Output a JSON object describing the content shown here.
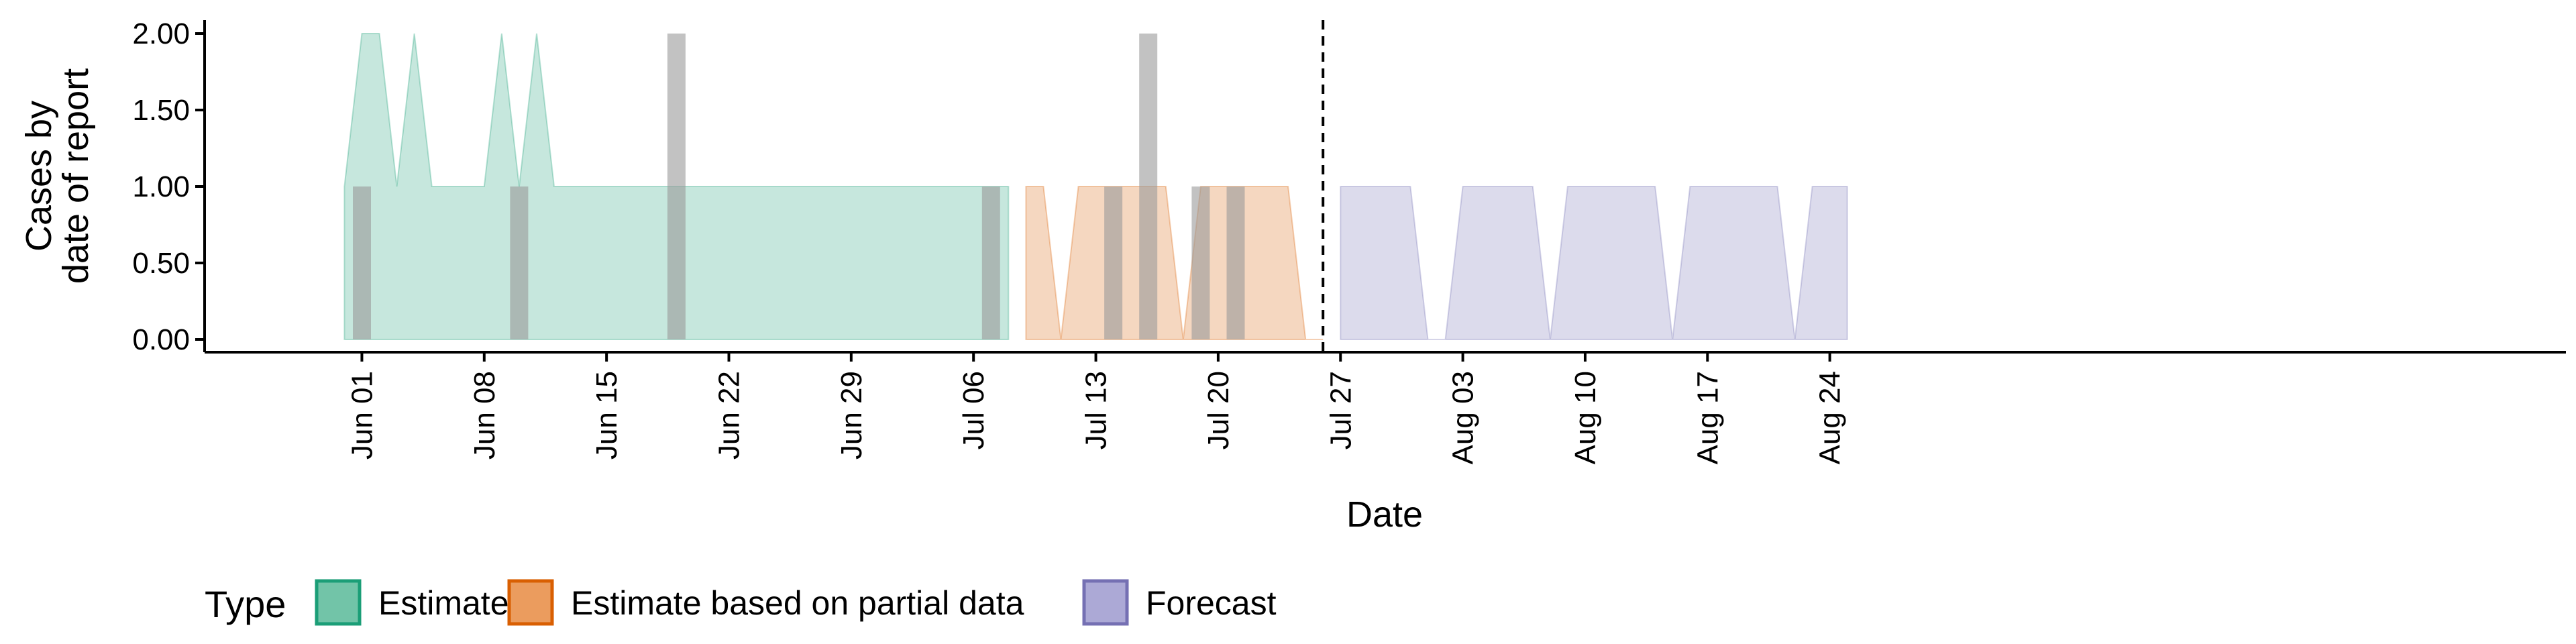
{
  "chart_data": {
    "type": "area",
    "xlabel": "Date",
    "ylabel_lines": [
      "Cases by",
      "date of report"
    ],
    "ylim": [
      0,
      2
    ],
    "xlim": [
      "2020-05-23",
      "2020-08-30"
    ],
    "y_ticks": [
      "0.00",
      "0.50",
      "1.00",
      "1.50",
      "2.00"
    ],
    "x_ticks": [
      {
        "date": "2020-06-01",
        "label": "Jun 01"
      },
      {
        "date": "2020-06-08",
        "label": "Jun 08"
      },
      {
        "date": "2020-06-15",
        "label": "Jun 15"
      },
      {
        "date": "2020-06-22",
        "label": "Jun 22"
      },
      {
        "date": "2020-06-29",
        "label": "Jun 29"
      },
      {
        "date": "2020-07-06",
        "label": "Jul 06"
      },
      {
        "date": "2020-07-13",
        "label": "Jul 13"
      },
      {
        "date": "2020-07-20",
        "label": "Jul 20"
      },
      {
        "date": "2020-07-27",
        "label": "Jul 27"
      },
      {
        "date": "2020-08-03",
        "label": "Aug 03"
      },
      {
        "date": "2020-08-10",
        "label": "Aug 10"
      },
      {
        "date": "2020-08-17",
        "label": "Aug 17"
      },
      {
        "date": "2020-08-24",
        "label": "Aug 24"
      }
    ],
    "forecast_date": "2020-07-26",
    "series": [
      {
        "name": "Estimate",
        "color": "#1b9e77",
        "points": [
          {
            "date": "2020-05-31",
            "lower": 0,
            "upper": 1
          },
          {
            "date": "2020-06-01",
            "lower": 0,
            "upper": 2
          },
          {
            "date": "2020-06-02",
            "lower": 0,
            "upper": 2
          },
          {
            "date": "2020-06-03",
            "lower": 0,
            "upper": 1
          },
          {
            "date": "2020-06-04",
            "lower": 0,
            "upper": 2
          },
          {
            "date": "2020-06-05",
            "lower": 0,
            "upper": 1
          },
          {
            "date": "2020-06-06",
            "lower": 0,
            "upper": 1
          },
          {
            "date": "2020-06-07",
            "lower": 0,
            "upper": 1
          },
          {
            "date": "2020-06-08",
            "lower": 0,
            "upper": 1
          },
          {
            "date": "2020-06-09",
            "lower": 0,
            "upper": 2
          },
          {
            "date": "2020-06-10",
            "lower": 0,
            "upper": 1
          },
          {
            "date": "2020-06-11",
            "lower": 0,
            "upper": 2
          },
          {
            "date": "2020-06-12",
            "lower": 0,
            "upper": 1
          },
          {
            "date": "2020-06-20",
            "lower": 0,
            "upper": 1
          },
          {
            "date": "2020-06-30",
            "lower": 0,
            "upper": 1
          },
          {
            "date": "2020-07-08",
            "lower": 0,
            "upper": 1
          }
        ]
      },
      {
        "name": "Estimate based on partial data",
        "color": "#d95f02",
        "points": [
          {
            "date": "2020-07-09",
            "lower": 0,
            "upper": 1
          },
          {
            "date": "2020-07-10",
            "lower": 0,
            "upper": 1
          },
          {
            "date": "2020-07-11",
            "lower": 0,
            "upper": 0
          },
          {
            "date": "2020-07-12",
            "lower": 0,
            "upper": 1
          },
          {
            "date": "2020-07-17",
            "lower": 0,
            "upper": 1
          },
          {
            "date": "2020-07-18",
            "lower": 0,
            "upper": 0
          },
          {
            "date": "2020-07-19",
            "lower": 0,
            "upper": 1
          },
          {
            "date": "2020-07-24",
            "lower": 0,
            "upper": 1
          },
          {
            "date": "2020-07-25",
            "lower": 0,
            "upper": 0
          },
          {
            "date": "2020-07-26",
            "lower": 0,
            "upper": 0
          }
        ]
      },
      {
        "name": "Forecast",
        "color": "#7570b3",
        "points": [
          {
            "date": "2020-07-27",
            "lower": 0,
            "upper": 1
          },
          {
            "date": "2020-07-31",
            "lower": 0,
            "upper": 1
          },
          {
            "date": "2020-08-01",
            "lower": 0,
            "upper": 0
          },
          {
            "date": "2020-08-02",
            "lower": 0,
            "upper": 0
          },
          {
            "date": "2020-08-03",
            "lower": 0,
            "upper": 1
          },
          {
            "date": "2020-08-07",
            "lower": 0,
            "upper": 1
          },
          {
            "date": "2020-08-08",
            "lower": 0,
            "upper": 0
          },
          {
            "date": "2020-08-09",
            "lower": 0,
            "upper": 1
          },
          {
            "date": "2020-08-14",
            "lower": 0,
            "upper": 1
          },
          {
            "date": "2020-08-15",
            "lower": 0,
            "upper": 0
          },
          {
            "date": "2020-08-16",
            "lower": 0,
            "upper": 1
          },
          {
            "date": "2020-08-21",
            "lower": 0,
            "upper": 1
          },
          {
            "date": "2020-08-22",
            "lower": 0,
            "upper": 0
          },
          {
            "date": "2020-08-23",
            "lower": 0,
            "upper": 1
          },
          {
            "date": "2020-08-25",
            "lower": 0,
            "upper": 1
          }
        ]
      }
    ],
    "reported_cases": {
      "color": "#999999",
      "bars": [
        {
          "date": "2020-06-01",
          "value": 1
        },
        {
          "date": "2020-06-10",
          "value": 1
        },
        {
          "date": "2020-06-19",
          "value": 2
        },
        {
          "date": "2020-07-07",
          "value": 1
        },
        {
          "date": "2020-07-14",
          "value": 1
        },
        {
          "date": "2020-07-16",
          "value": 2
        },
        {
          "date": "2020-07-19",
          "value": 1
        },
        {
          "date": "2020-07-21",
          "value": 1
        }
      ]
    },
    "legend": {
      "title": "Type",
      "position": "bottom",
      "items": [
        {
          "label": "Estimate",
          "fill": "#72c4a8",
          "stroke": "#1b9e77"
        },
        {
          "label": "Estimate based on partial data",
          "fill": "#eb9c5e",
          "stroke": "#d95f02"
        },
        {
          "label": "Forecast",
          "fill": "#aca9d6",
          "stroke": "#7570b3"
        }
      ]
    }
  }
}
